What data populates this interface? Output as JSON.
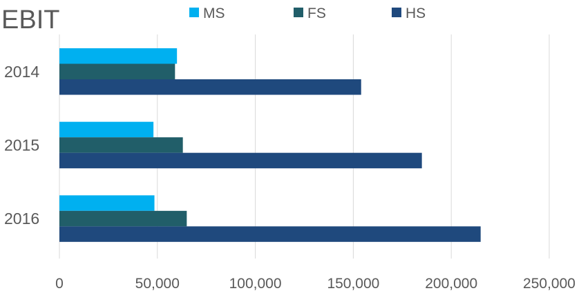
{
  "chart_data": {
    "type": "bar",
    "orientation": "horizontal",
    "title": "EBIT",
    "categories": [
      "2014",
      "2015",
      "2016"
    ],
    "series": [
      {
        "name": "MS",
        "color": "#00B0F0",
        "values": [
          60000,
          48000,
          48500
        ]
      },
      {
        "name": "FS",
        "color": "#215E69",
        "values": [
          59000,
          63000,
          65000
        ]
      },
      {
        "name": "HS",
        "color": "#1F497D",
        "values": [
          154000,
          185000,
          215000
        ]
      }
    ],
    "x_ticks": [
      "0",
      "50,000",
      "100,000",
      "150,000",
      "200,000",
      "250,000"
    ],
    "xlim": [
      0,
      250000
    ],
    "grid": true,
    "legend_position": "top"
  }
}
